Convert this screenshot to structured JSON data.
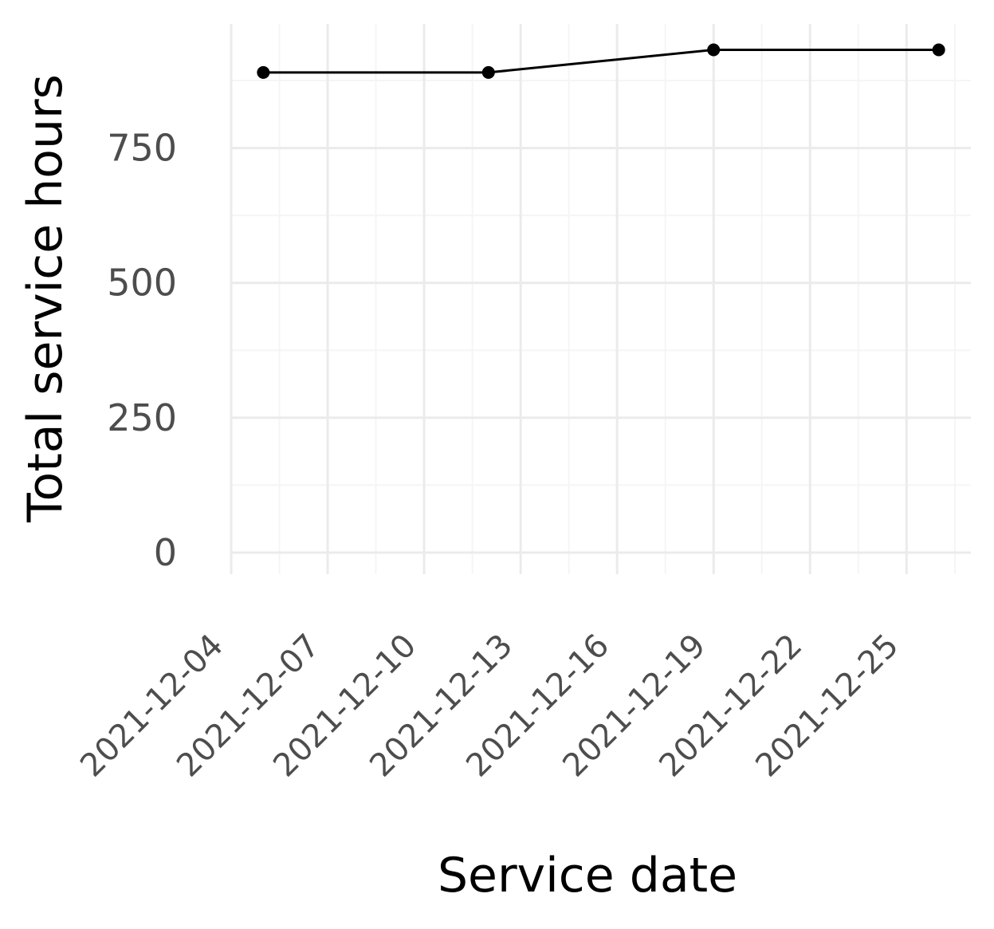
{
  "chart_data": {
    "type": "line",
    "xlabel": "Service date",
    "ylabel": "Total service hours",
    "x_tick_labels": [
      "2021-12-04",
      "2021-12-07",
      "2021-12-10",
      "2021-12-13",
      "2021-12-16",
      "2021-12-19",
      "2021-12-22",
      "2021-12-25"
    ],
    "y_ticks": [
      0,
      250,
      500,
      750
    ],
    "xlim": [
      "2021-12-04",
      "2021-12-27"
    ],
    "ylim": [
      -40,
      980
    ],
    "grid": true,
    "series": [
      {
        "x": [
          "2021-12-05",
          "2021-12-12",
          "2021-12-19",
          "2021-12-26"
        ],
        "values": [
          890,
          890,
          932,
          932
        ]
      }
    ],
    "colors": {
      "line": "#000000",
      "point": "#000000",
      "grid_major": "#ebebeb",
      "grid_minor": "#f5f5f5",
      "tick_text": "#4d4d4d"
    }
  }
}
